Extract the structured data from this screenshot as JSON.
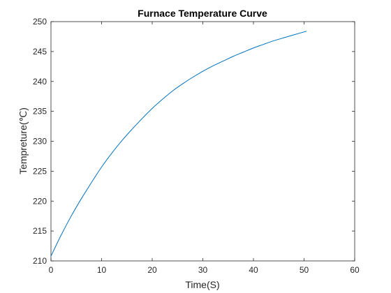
{
  "chart_data": {
    "type": "line",
    "title": "Furnace Temperature Curve",
    "xlabel": "Time(S)",
    "ylabel": "Tempreture(℃)",
    "xlim": [
      0,
      60
    ],
    "ylim": [
      210,
      250
    ],
    "xticks": [
      0,
      10,
      20,
      30,
      40,
      50,
      60
    ],
    "yticks": [
      210,
      215,
      220,
      225,
      230,
      235,
      240,
      245,
      250
    ],
    "grid": false,
    "series_color": "#0072BD",
    "series": [
      {
        "x": [
          0,
          2,
          4,
          6,
          8,
          10,
          12,
          14,
          16,
          18,
          20,
          22,
          24,
          26,
          28,
          30,
          32,
          34,
          36,
          38,
          40,
          42,
          44,
          46,
          48,
          50.5
        ],
        "y": [
          210.8,
          214.3,
          217.5,
          220.4,
          223.1,
          225.7,
          228.0,
          230.1,
          232.0,
          233.8,
          235.5,
          237.0,
          238.4,
          239.6,
          240.7,
          241.7,
          242.6,
          243.4,
          244.2,
          244.9,
          245.6,
          246.2,
          246.8,
          247.3,
          247.8,
          248.4
        ]
      }
    ]
  }
}
